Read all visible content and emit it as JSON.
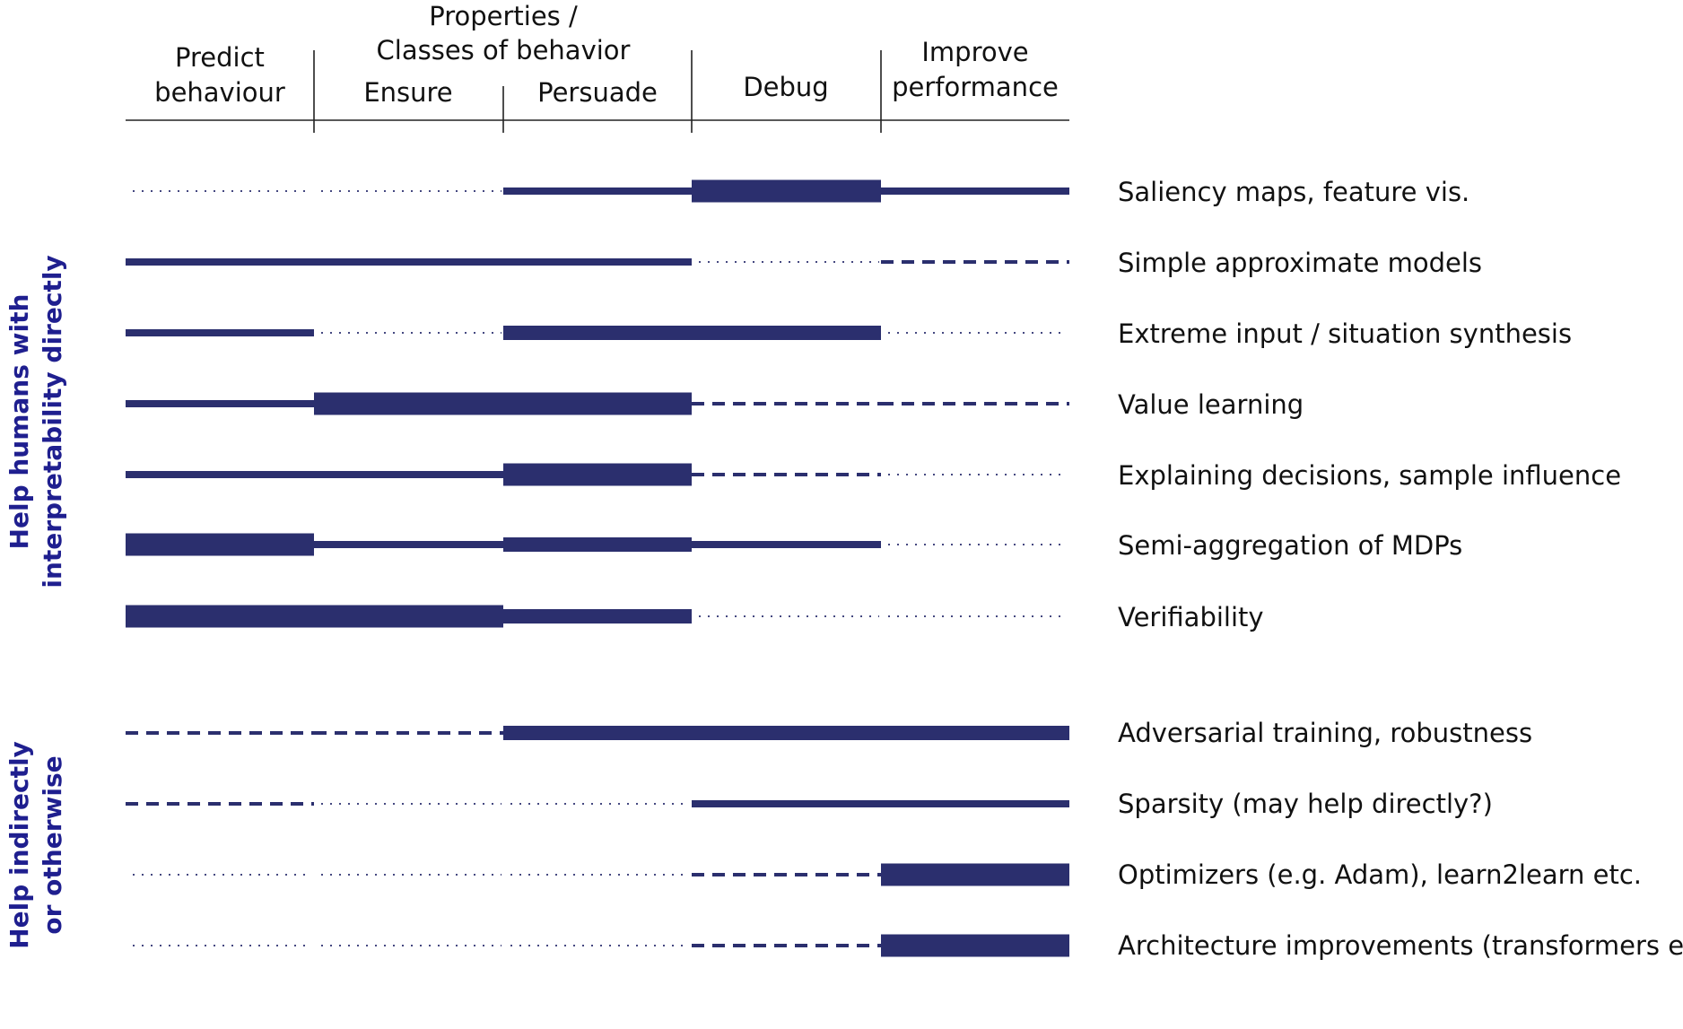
{
  "colors": {
    "line": "#2b2f6e",
    "group_label": "#1f1f8f",
    "axis": "#222222"
  },
  "header": {
    "group_title_line1": "Properties /",
    "group_title_line2": "Classes of behavior",
    "columns": [
      {
        "lines": [
          "Predict",
          "behaviour"
        ]
      },
      {
        "lines": [
          "Ensure"
        ]
      },
      {
        "lines": [
          "Persuade"
        ]
      },
      {
        "lines": [
          "Debug"
        ]
      },
      {
        "lines": [
          "Improve",
          "performance"
        ]
      }
    ]
  },
  "groups": [
    {
      "lines": [
        "Help humans with",
        "interpretability directly"
      ]
    },
    {
      "lines": [
        "Help indirectly",
        "or otherwise"
      ]
    }
  ],
  "rows": [
    {
      "label": "Saliency maps, feature vis.",
      "group": 0,
      "cells": [
        "dotted",
        "dotted",
        "medium",
        "thick",
        "medium"
      ]
    },
    {
      "label": "Simple approximate models",
      "group": 0,
      "cells": [
        "medium",
        "medium",
        "medium",
        "dotted",
        "dashed"
      ]
    },
    {
      "label": "Extreme input / situation synthesis",
      "group": 0,
      "cells": [
        "medium",
        "dotted",
        "semi",
        "semi",
        "dotted"
      ]
    },
    {
      "label": "Value learning",
      "group": 0,
      "cells": [
        "medium",
        "thick",
        "thick",
        "dashed",
        "dashed"
      ]
    },
    {
      "label": "Explaining decisions, sample influence",
      "group": 0,
      "cells": [
        "medium",
        "medium",
        "thick",
        "dashed",
        "dotted"
      ]
    },
    {
      "label": "Semi-aggregation of MDPs",
      "group": 0,
      "cells": [
        "thick",
        "medium",
        "semi",
        "medium",
        "dotted"
      ]
    },
    {
      "label": "Verifiability",
      "group": 0,
      "cells": [
        "thick",
        "thick",
        "semi",
        "dotted",
        "dotted"
      ]
    },
    {
      "label": "Adversarial training, robustness",
      "group": 1,
      "cells": [
        "dashed",
        "dashed",
        "semi",
        "semi",
        "semi"
      ]
    },
    {
      "label": "Sparsity (may help directly?)",
      "group": 1,
      "cells": [
        "dashed",
        "dotted",
        "dotted",
        "medium",
        "medium"
      ]
    },
    {
      "label": "Optimizers (e.g. Adam), learn2learn etc.",
      "group": 1,
      "cells": [
        "dotted",
        "dotted",
        "dotted",
        "dashed",
        "thick"
      ]
    },
    {
      "label": "Architecture improvements (transformers etc.)",
      "group": 1,
      "cells": [
        "dotted",
        "dotted",
        "dotted",
        "dashed",
        "thick"
      ]
    }
  ]
}
